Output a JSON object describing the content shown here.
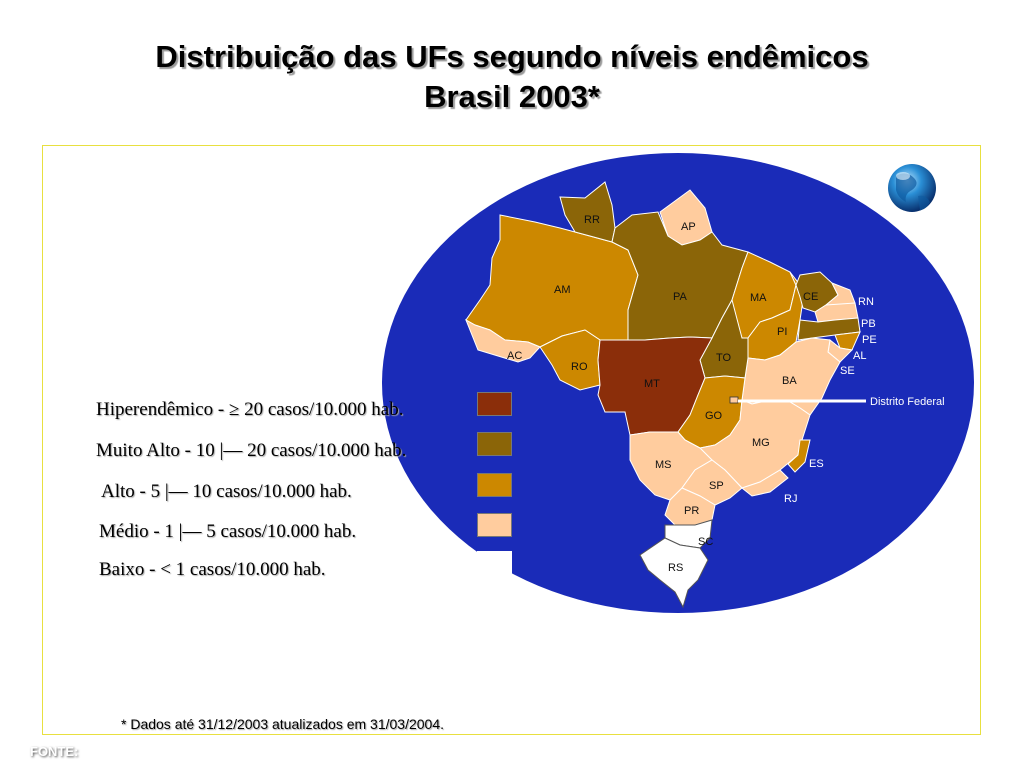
{
  "title": {
    "line1": "Distribuição das UFs segundo níveis endêmicos",
    "line2": "Brasil 2003*"
  },
  "legend": [
    {
      "label": "Hiperendêmico - ≥ 20 casos/10.000 hab.",
      "color": "#8B2E0A"
    },
    {
      "label": "Muito Alto - 10 |— 20 casos/10.000 hab.",
      "color": "#8B6508"
    },
    {
      "label": "Alto - 5 |— 10 casos/10.000 hab.",
      "color": "#CC8800"
    },
    {
      "label": "Médio - 1 |— 5 casos/10.000 hab.",
      "color": "#FFCC9E"
    },
    {
      "label": "Baixo - < 1 casos/10.000 hab.",
      "color": "#FFFFFF"
    }
  ],
  "colors": {
    "ocean": "#1A2BB8",
    "frame_border": "#E8E040"
  },
  "states": {
    "RR": "RR",
    "AP": "AP",
    "AM": "AM",
    "PA": "PA",
    "MA": "MA",
    "CE": "CE",
    "RN": "RN",
    "PB": "PB",
    "PE": "PE",
    "AL": "AL",
    "SE": "SE",
    "PI": "PI",
    "AC": "AC",
    "RO": "RO",
    "MT": "MT",
    "TO": "TO",
    "BA": "BA",
    "GO": "GO",
    "MG": "MG",
    "ES": "ES",
    "MS": "MS",
    "SP": "SP",
    "RJ": "RJ",
    "PR": "PR",
    "SC": "SC",
    "RS": "RS"
  },
  "df_label": "Distrito Federal",
  "footnote": "* Dados até 31/12/2003 atualizados em 31/03/2004.",
  "source_label": "FONTE:",
  "icon": "globe-icon"
}
